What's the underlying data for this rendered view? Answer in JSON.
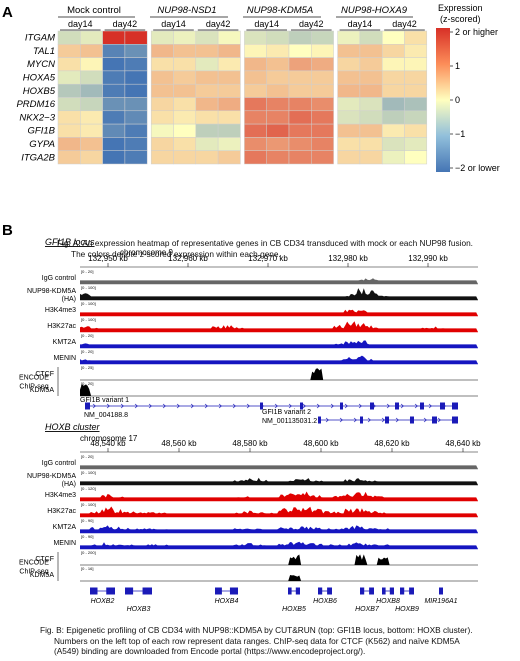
{
  "panel_a": {
    "letter": "A",
    "groups": [
      "Mock control",
      "NUP98-NSD1",
      "NUP98-KDM5A",
      "NUP98-HOXA9"
    ],
    "days": [
      "day14",
      "day42"
    ],
    "legend": {
      "title_line1": "Expression",
      "title_line2": "(z-scored)",
      "max_label": "2 or higher",
      "tick_1": "1",
      "tick_0": "0",
      "tick_m1": "−1",
      "min_label": "−2 or lower",
      "colors": {
        "low": "#4575b4",
        "mid": "#ffffbf",
        "high": "#d73027"
      }
    },
    "caption_line1": "Fig. A: An expression heatmap of representative genes in CB CD34 transduced with mock or each NUP98 fusion.",
    "caption_line2": "The colors denote z-scored expression within each gene."
  },
  "chart_data": [
    {
      "type": "heatmap",
      "rows": [
        "ITGAM",
        "TAL1",
        "MYCN",
        "HOXA5",
        "HOXB5",
        "PRDM16",
        "NKX2−3",
        "GFI1B",
        "GYPA",
        "ITGA2B"
      ],
      "columns": [
        "Mock control day14 r1",
        "Mock control day14 r2",
        "Mock control day42 r1",
        "Mock control day42 r2",
        "NUP98-NSD1 day14 r1",
        "NUP98-NSD1 day14 r2",
        "NUP98-NSD1 day42 r1",
        "NUP98-NSD1 day42 r2",
        "NUP98-KDM5A day14 r1",
        "NUP98-KDM5A day14 r2",
        "NUP98-KDM5A day42 r1",
        "NUP98-KDM5A day42 r2",
        "NUP98-HOXA9 day14 r1",
        "NUP98-HOXA9 day14 r2",
        "NUP98-HOXA9 day42 r1",
        "NUP98-HOXA9 day42 r2"
      ],
      "values": [
        [
          -0.5,
          -0.3,
          2.5,
          2.3,
          -0.3,
          -0.2,
          -0.4,
          -0.1,
          -0.4,
          -0.5,
          -0.7,
          -0.6,
          -0.2,
          -0.5,
          0.0,
          0.3
        ],
        [
          0.5,
          0.6,
          -1.8,
          -1.6,
          0.7,
          0.6,
          0.6,
          0.7,
          0.1,
          0.2,
          0.0,
          0.1,
          0.6,
          0.6,
          0.4,
          0.2
        ],
        [
          0.3,
          0.1,
          -2.0,
          -1.9,
          0.3,
          0.3,
          -0.3,
          0.2,
          0.7,
          0.6,
          0.9,
          0.8,
          0.4,
          0.5,
          0.1,
          0.1
        ],
        [
          -0.3,
          -0.5,
          -1.9,
          -2.0,
          0.6,
          0.5,
          0.6,
          0.6,
          0.6,
          0.5,
          0.5,
          0.5,
          0.6,
          0.6,
          0.4,
          0.4
        ],
        [
          -0.8,
          -1.0,
          -1.9,
          -2.0,
          0.6,
          0.6,
          0.5,
          0.5,
          0.5,
          0.6,
          0.5,
          0.5,
          0.7,
          0.7,
          0.4,
          0.4
        ],
        [
          -0.5,
          -0.6,
          -1.6,
          -1.6,
          0.4,
          0.3,
          0.7,
          0.8,
          1.3,
          1.2,
          1.2,
          1.1,
          -0.3,
          -0.4,
          -1.0,
          -0.9
        ],
        [
          0.3,
          0.2,
          -1.9,
          -1.7,
          0.3,
          0.2,
          0.3,
          0.3,
          1.2,
          1.2,
          1.4,
          1.3,
          -0.4,
          -0.5,
          -0.7,
          -0.6
        ],
        [
          0.3,
          0.2,
          -1.7,
          -1.9,
          -0.1,
          0.0,
          -0.7,
          -0.7,
          1.4,
          1.5,
          1.3,
          1.3,
          0.6,
          0.6,
          0.2,
          0.3
        ],
        [
          0.7,
          0.6,
          -2.0,
          -1.9,
          0.4,
          0.3,
          -0.3,
          -0.2,
          1.1,
          1.0,
          1.1,
          1.2,
          0.3,
          0.3,
          -0.4,
          -0.3
        ],
        [
          0.5,
          0.4,
          -2.0,
          -1.9,
          0.4,
          0.4,
          0.4,
          0.5,
          1.3,
          1.2,
          1.2,
          1.2,
          0.4,
          0.4,
          -0.2,
          0.0
        ]
      ],
      "colorbar_range": [
        -2,
        2
      ],
      "colorbar_ticks": [
        -2,
        -1,
        0,
        1,
        2
      ]
    },
    {
      "type": "area",
      "title": "GFI1B locus",
      "chromosome": "chromosome 9",
      "x_ticks": [
        "132,950 kb",
        "132,960 kb",
        "132,970 kb",
        "132,980 kb",
        "132,990 kb"
      ],
      "tracks": [
        {
          "name": "IgG control",
          "range": "[0 - 20]",
          "color": "#666666",
          "profile": [
            0.3,
            0.2,
            0.3,
            0.2,
            0.3,
            0.2,
            0.3,
            0.2,
            0.3,
            0.2,
            0.3,
            0.2,
            0.3,
            0.2,
            0.2,
            0.3,
            0.2,
            0.2,
            0.3,
            0.2,
            0.2,
            0.3,
            0.2,
            0.3,
            0.2,
            0.6,
            0.5,
            0.3,
            0.2,
            0.3,
            0.2,
            0.2,
            0.3,
            0.2,
            0.2,
            0.3
          ]
        },
        {
          "name": "NUP98-KDM5A (HA)",
          "range": "[0 - 100]",
          "color": "#111111",
          "profile": [
            0.6,
            0.1,
            0.1,
            0.2,
            0.1,
            0.1,
            0.1,
            0.1,
            0.2,
            0.1,
            0.1,
            0.1,
            0.1,
            0.1,
            0.1,
            0.1,
            0.1,
            0.1,
            0.1,
            0.1,
            0.1,
            0.1,
            0.2,
            0.3,
            0.5,
            1.0,
            0.8,
            0.4,
            0.2,
            0.1,
            0.1,
            0.1,
            0.1,
            0.1,
            0.1,
            0.1
          ]
        },
        {
          "name": "H3K4me3",
          "range": "[0 - 100]",
          "color": "#e00000",
          "profile": [
            0.3,
            0.1,
            0.1,
            0.1,
            0.1,
            0.1,
            0.1,
            0.1,
            0.1,
            0.1,
            0.1,
            0.1,
            0.1,
            0.1,
            0.1,
            0.1,
            0.1,
            0.1,
            0.1,
            0.1,
            0.1,
            0.1,
            0.1,
            0.2,
            0.6,
            0.5,
            0.3,
            0.1,
            0.1,
            0.1,
            0.1,
            0.1,
            0.1,
            0.1,
            0.1,
            0.1
          ]
        },
        {
          "name": "H3K27ac",
          "range": "[0 - 100]",
          "color": "#e00000",
          "profile": [
            0.7,
            0.4,
            0.2,
            0.2,
            0.2,
            0.3,
            0.2,
            0.2,
            0.3,
            0.2,
            0.2,
            0.3,
            0.5,
            0.6,
            0.4,
            0.2,
            0.3,
            0.2,
            0.2,
            0.2,
            0.3,
            0.3,
            0.4,
            0.6,
            0.9,
            0.8,
            0.6,
            0.4,
            0.3,
            0.2,
            0.3,
            0.4,
            0.5,
            0.3,
            0.2,
            0.2
          ]
        },
        {
          "name": "KMT2A",
          "range": "[0 - 20]",
          "color": "#1515c0",
          "profile": [
            0.4,
            0.3,
            0.3,
            0.3,
            0.3,
            0.3,
            0.3,
            0.3,
            0.3,
            0.3,
            0.3,
            0.3,
            0.3,
            0.3,
            0.3,
            0.3,
            0.3,
            0.3,
            0.3,
            0.3,
            0.3,
            0.3,
            0.3,
            0.4,
            0.6,
            0.7,
            0.5,
            0.3,
            0.3,
            0.3,
            0.3,
            0.3,
            0.3,
            0.3,
            0.3,
            0.3
          ]
        },
        {
          "name": "MENIN",
          "range": "[0 - 20]",
          "color": "#1515c0",
          "profile": [
            0.5,
            0.3,
            0.3,
            0.3,
            0.3,
            0.3,
            0.3,
            0.3,
            0.3,
            0.3,
            0.3,
            0.3,
            0.3,
            0.3,
            0.3,
            0.3,
            0.3,
            0.3,
            0.3,
            0.3,
            0.3,
            0.3,
            0.3,
            0.4,
            0.6,
            0.7,
            0.5,
            0.3,
            0.3,
            0.3,
            0.3,
            0.3,
            0.3,
            0.3,
            0.3,
            0.3
          ]
        },
        {
          "name": "CTCF",
          "range": "[0 - 25]",
          "color": "#000000",
          "profile": [
            0,
            0,
            0,
            0,
            0,
            0,
            0,
            0,
            0,
            0,
            0,
            0,
            0,
            0,
            0,
            0,
            0,
            0,
            0,
            0,
            0,
            1.0,
            0,
            0,
            0,
            0,
            0,
            0,
            0,
            0,
            0,
            0,
            0,
            0,
            0,
            0
          ]
        },
        {
          "name": "KDM5A",
          "range": "[0 - 20]",
          "color": "#000000",
          "profile": [
            1.0,
            0,
            0,
            0,
            0,
            0,
            0,
            0,
            0,
            0,
            0,
            0,
            0,
            0,
            0,
            0,
            0,
            0,
            0,
            0,
            0,
            0,
            0,
            0,
            0,
            0,
            0,
            0,
            0,
            0,
            0,
            0,
            0,
            0,
            0,
            0
          ]
        }
      ]
    },
    {
      "type": "area",
      "title": "HOXB cluster",
      "chromosome": "chromosome 17",
      "x_ticks": [
        "48,540 kb",
        "48,560 kb",
        "48,580 kb",
        "48,600 kb",
        "48,620 kb",
        "48,640 kb"
      ],
      "tracks": [
        {
          "name": "IgG control",
          "range": "[0 - 20]",
          "color": "#666666",
          "profile": [
            0.2,
            0.2,
            0.2,
            0.2,
            0.2,
            0.2,
            0.2,
            0.2,
            0.2,
            0.2,
            0.2,
            0.2,
            0.2,
            0.2,
            0.2,
            0.2,
            0.2,
            0.2,
            0.2,
            0.2,
            0.2,
            0.2,
            0.2,
            0.2,
            0.2,
            0.2,
            0.2,
            0.2,
            0.2,
            0.2,
            0.2,
            0.2,
            0.2,
            0.2,
            0.2,
            0.2
          ]
        },
        {
          "name": "NUP98-KDM5A (HA)",
          "range": "[0 - 100]",
          "color": "#111111",
          "profile": [
            0.1,
            0.1,
            0.1,
            0.1,
            0.1,
            0.1,
            0.1,
            0.2,
            0.1,
            0.1,
            0.1,
            0.1,
            0.1,
            0.2,
            0.5,
            0.7,
            0.6,
            0.3,
            0.2,
            0.5,
            0.6,
            0.4,
            0.2,
            0.3,
            0.5,
            0.6,
            0.4,
            0.3,
            0.1,
            0.1,
            0.1,
            0.1,
            0.1,
            0.1,
            0.1,
            0.1
          ]
        },
        {
          "name": "H3K4me3",
          "range": "[0 - 120]",
          "color": "#e00000",
          "profile": [
            0.1,
            0.3,
            0.6,
            0.4,
            0.2,
            0.1,
            0.2,
            0.3,
            0.2,
            0.1,
            0.2,
            0.3,
            0.2,
            0.2,
            0.4,
            0.5,
            0.3,
            0.2,
            0.6,
            0.7,
            0.8,
            0.5,
            0.3,
            0.5,
            0.6,
            0.8,
            0.5,
            0.4,
            0.2,
            0.1,
            0.1,
            0.1,
            0.1,
            0.1,
            0.1,
            0.1
          ]
        },
        {
          "name": "H3K27ac",
          "range": "[0 - 100]",
          "color": "#e00000",
          "profile": [
            0.3,
            0.6,
            0.9,
            0.7,
            0.5,
            0.4,
            0.5,
            0.4,
            0.3,
            0.2,
            0.3,
            0.3,
            0.2,
            0.3,
            0.5,
            0.6,
            0.5,
            0.4,
            0.8,
            0.9,
            0.9,
            0.7,
            0.5,
            0.5,
            0.7,
            0.8,
            0.6,
            0.4,
            0.3,
            0.2,
            0.2,
            0.2,
            0.2,
            0.2,
            0.2,
            0.2
          ]
        },
        {
          "name": "KMT2A",
          "range": "[0 - 90]",
          "color": "#1515c0",
          "profile": [
            0.3,
            0.5,
            0.7,
            0.6,
            0.5,
            0.4,
            0.4,
            0.4,
            0.3,
            0.3,
            0.3,
            0.3,
            0.3,
            0.3,
            0.4,
            0.5,
            0.4,
            0.3,
            0.5,
            0.6,
            0.6,
            0.5,
            0.4,
            0.4,
            0.6,
            0.7,
            0.5,
            0.4,
            0.2,
            0.2,
            0.2,
            0.2,
            0.2,
            0.2,
            0.2,
            0.2
          ]
        },
        {
          "name": "MENIN",
          "range": "[0 - 90]",
          "color": "#1515c0",
          "profile": [
            0.3,
            0.4,
            0.6,
            0.5,
            0.4,
            0.3,
            0.4,
            0.4,
            0.3,
            0.3,
            0.3,
            0.3,
            0.3,
            0.3,
            0.4,
            0.5,
            0.4,
            0.3,
            0.5,
            0.6,
            0.6,
            0.5,
            0.4,
            0.4,
            0.5,
            0.6,
            0.5,
            0.4,
            0.2,
            0.2,
            0.2,
            0.2,
            0.2,
            0.2,
            0.2,
            0.2
          ]
        },
        {
          "name": "CTCF",
          "range": "[0 - 200]",
          "color": "#000000",
          "profile": [
            0,
            0,
            0,
            0,
            0,
            0,
            0,
            0,
            0,
            0,
            0,
            0,
            0,
            0,
            0,
            0,
            0,
            0,
            0,
            1.0,
            0,
            0,
            0,
            0,
            0,
            0.9,
            0,
            0.7,
            0,
            0,
            0,
            0,
            0,
            0,
            0,
            0
          ]
        },
        {
          "name": "KDM5A",
          "range": "[0 - 16]",
          "color": "#000000",
          "profile": [
            0,
            0,
            0,
            0,
            0,
            0,
            0,
            0,
            0,
            0,
            0,
            0,
            0,
            0,
            0,
            0,
            0,
            0,
            0,
            0.6,
            0,
            0,
            0,
            0,
            0,
            0,
            0,
            0,
            0,
            0,
            0,
            0,
            0,
            0,
            0,
            0
          ]
        }
      ]
    }
  ],
  "panel_b": {
    "letter": "B",
    "gfi1b_title": "GFI1B locus",
    "hoxb_title": "HOXB cluster",
    "encode_line1": "ENCODE",
    "encode_line2": "ChIP-seq",
    "gfi1b_genes": {
      "variant1_name": "GFI1B variant 1",
      "variant1_id": "NM_004188.8",
      "variant2_name": "GFI1B variant 2",
      "variant2_id": "NM_001135031.2"
    },
    "hoxb_genes": [
      "HOXB2",
      "HOXB3",
      "HOXB4",
      "HOXB5",
      "HOXB6",
      "HOXB7",
      "HOXB8",
      "HOXB9",
      "MIR196A1"
    ],
    "caption_line1": "Fig. B: Epigenetic profiling of CB CD34 with NUP98::KDM5A by CUT&RUN (top: GFI1B locus, bottom: HOXB cluster).",
    "caption_line2": "Numbers on the left top of each row represent data ranges. ChIP-seq data for CTCF (K562) and naïve KDM5A",
    "caption_line3": "(A549) binding are downloaded from Encode portal (https://www.encodeproject.org/)."
  }
}
